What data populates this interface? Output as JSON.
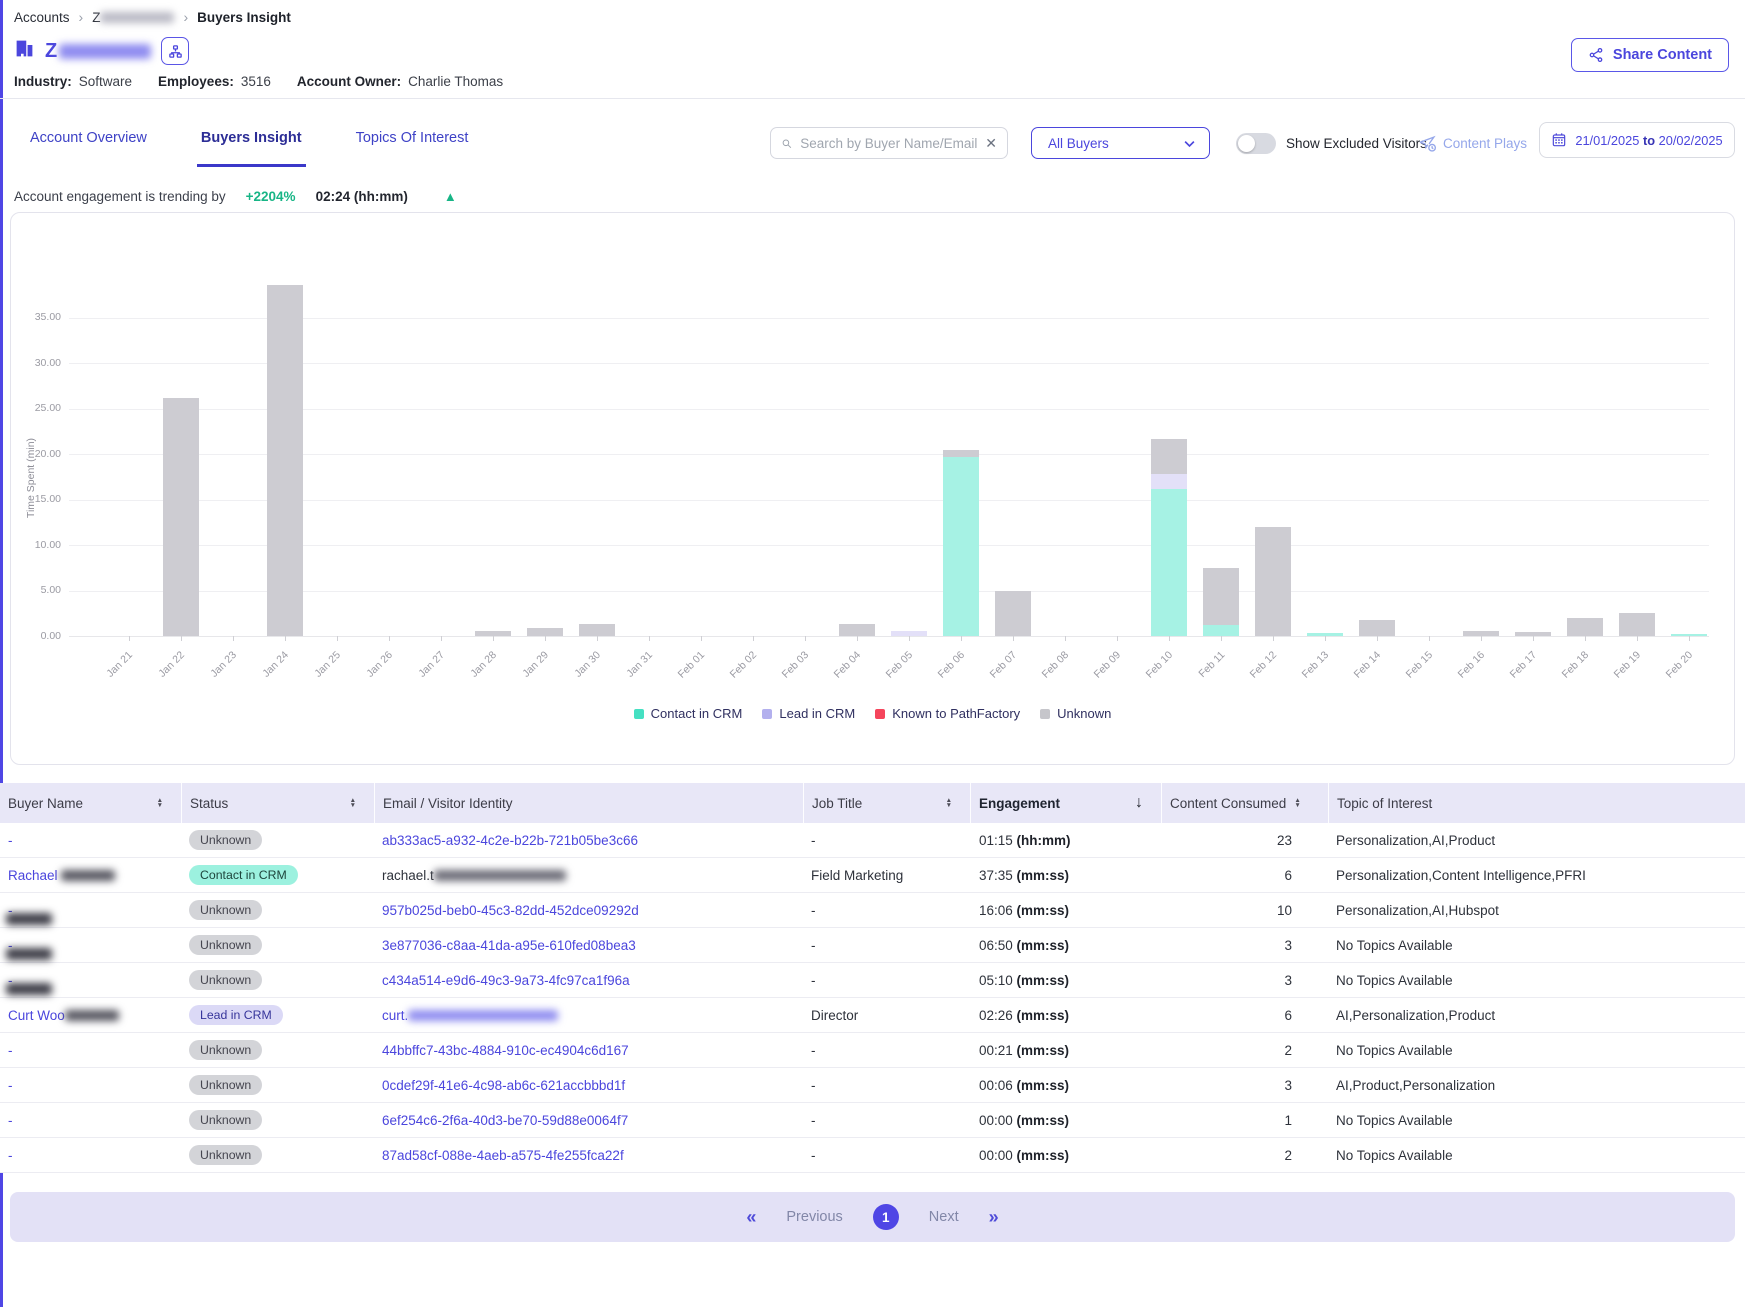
{
  "breadcrumb": {
    "root": "Accounts",
    "separator": "›",
    "account_initial": "Z",
    "current": "Buyers Insight"
  },
  "account_header": {
    "company_initial": "Z",
    "share_button_label": "Share Content",
    "meta": [
      {
        "label": "Industry:",
        "value": "Software"
      },
      {
        "label": "Employees:",
        "value": "3516"
      },
      {
        "label": "Account Owner:",
        "value": "Charlie Thomas"
      }
    ]
  },
  "tabs": [
    {
      "label": "Account Overview",
      "active": false
    },
    {
      "label": "Buyers Insight",
      "active": true
    },
    {
      "label": "Topics Of Interest",
      "active": false
    }
  ],
  "filters": {
    "search_placeholder": "Search by Buyer Name/Email",
    "clear_glyph": "✕",
    "buyers_dropdown_value": "All Buyers",
    "toggle_label": "Show Excluded Visitors",
    "toggle_on": false,
    "content_plays_label": "Content Plays",
    "date_range": {
      "start": "21/01/2025",
      "separator": "to",
      "end": "20/02/2025"
    }
  },
  "trending": {
    "prefix": "Account engagement is trending by",
    "percent": "+2204%",
    "time": "02:24 (hh:mm)",
    "direction_glyph": "▲"
  },
  "chart_data": {
    "type": "bar",
    "stacked": true,
    "ylabel": "Time Spent (min)",
    "ylim": [
      0,
      35
    ],
    "ytick_step": 5,
    "grid": true,
    "legend_position": "bottom-center",
    "categories": [
      "Jan 21",
      "Jan 22",
      "Jan 23",
      "Jan 24",
      "Jan 25",
      "Jan 26",
      "Jan 27",
      "Jan 28",
      "Jan 29",
      "Jan 30",
      "Jan 31",
      "Feb 01",
      "Feb 02",
      "Feb 03",
      "Feb 04",
      "Feb 05",
      "Feb 06",
      "Feb 07",
      "Feb 08",
      "Feb 09",
      "Feb 10",
      "Feb 11",
      "Feb 12",
      "Feb 13",
      "Feb 14",
      "Feb 15",
      "Feb 16",
      "Feb 17",
      "Feb 18",
      "Feb 19",
      "Feb 20"
    ],
    "series": [
      {
        "name": "Contact in CRM",
        "color": "#a6f2e4",
        "values": [
          0,
          0,
          0,
          0,
          0,
          0,
          0,
          0,
          0,
          0,
          0,
          0,
          0,
          0,
          0,
          0,
          19.7,
          0,
          0,
          0,
          16.1,
          1.2,
          0,
          0.3,
          0,
          0,
          0,
          0,
          0,
          0,
          0.2
        ]
      },
      {
        "name": "Lead in CRM",
        "color": "#e3e0f8",
        "values": [
          0,
          0,
          0,
          0,
          0,
          0,
          0,
          0,
          0,
          0,
          0,
          0,
          0,
          0,
          0,
          0.6,
          0,
          0,
          0,
          0,
          1.7,
          0,
          0,
          0,
          0,
          0,
          0,
          0,
          0,
          0,
          0
        ]
      },
      {
        "name": "Known to PathFactory",
        "color": "#f5455c",
        "values": [
          0,
          0,
          0,
          0,
          0,
          0,
          0,
          0,
          0,
          0,
          0,
          0,
          0,
          0,
          0,
          0,
          0,
          0,
          0,
          0,
          0,
          0,
          0,
          0,
          0,
          0,
          0,
          0,
          0,
          0,
          0
        ]
      },
      {
        "name": "Unknown",
        "color": "#cdccd2",
        "values": [
          0,
          26.2,
          0,
          38.6,
          0,
          0,
          0,
          0.6,
          0.9,
          1.3,
          0,
          0,
          0,
          0,
          1.3,
          0,
          0.7,
          5,
          0,
          0,
          3.8,
          6.3,
          12,
          0,
          1.8,
          0,
          0.6,
          0.4,
          2,
          2.5,
          0
        ]
      }
    ],
    "legend": [
      {
        "label": "Contact in CRM",
        "color": "#45e0c2"
      },
      {
        "label": "Lead in CRM",
        "color": "#b3b0ee"
      },
      {
        "label": "Known to PathFactory",
        "color": "#f5455c"
      },
      {
        "label": "Unknown",
        "color": "#c6c6cb"
      }
    ]
  },
  "table": {
    "columns": [
      {
        "label": "Buyer Name",
        "sort": "both"
      },
      {
        "label": "Status",
        "sort": "both"
      },
      {
        "label": "Email / Visitor Identity",
        "sort": "none"
      },
      {
        "label": "Job Title",
        "sort": "both"
      },
      {
        "label": "Engagement",
        "sort": "desc",
        "bold": true
      },
      {
        "label": "Content Consumed",
        "sort": "both",
        "tight": true
      },
      {
        "label": "Topic of Interest",
        "sort": "none"
      }
    ],
    "rows": [
      {
        "name": "-",
        "name_redact": "none",
        "status": "Unknown",
        "status_type": "unknown",
        "email": "ab333ac5-a932-4c2e-b22b-721b05be3c66",
        "email_link": true,
        "email_redact": false,
        "job_title": "-",
        "engagement_time": "01:15",
        "engagement_unit": "(hh:mm)",
        "content_consumed": "23",
        "topic": "Personalization,AI,Product"
      },
      {
        "name": "Rachael ",
        "name_redact": "inline",
        "status": "Contact in CRM",
        "status_type": "contact",
        "email": "rachael.t",
        "email_link": false,
        "email_redact": true,
        "job_title": "Field Marketing",
        "engagement_time": "37:35",
        "engagement_unit": "(mm:ss)",
        "content_consumed": "6",
        "topic": "Personalization,Content Intelligence,PFRI"
      },
      {
        "name": "-",
        "name_redact": "below",
        "status": "Unknown",
        "status_type": "unknown",
        "email": "957b025d-beb0-45c3-82dd-452dce09292d",
        "email_link": true,
        "email_redact": false,
        "job_title": "-",
        "engagement_time": "16:06",
        "engagement_unit": "(mm:ss)",
        "content_consumed": "10",
        "topic": "Personalization,AI,Hubspot"
      },
      {
        "name": "-",
        "name_redact": "below",
        "status": "Unknown",
        "status_type": "unknown",
        "email": "3e877036-c8aa-41da-a95e-610fed08bea3",
        "email_link": true,
        "email_redact": false,
        "job_title": "-",
        "engagement_time": "06:50",
        "engagement_unit": "(mm:ss)",
        "content_consumed": "3",
        "topic": "No Topics Available"
      },
      {
        "name": "-",
        "name_redact": "below",
        "status": "Unknown",
        "status_type": "unknown",
        "email": "c434a514-e9d6-49c3-9a73-4fc97ca1f96a",
        "email_link": true,
        "email_redact": false,
        "job_title": "-",
        "engagement_time": "05:10",
        "engagement_unit": "(mm:ss)",
        "content_consumed": "3",
        "topic": "No Topics Available"
      },
      {
        "name": "Curt Woo",
        "name_redact": "inline",
        "status": "Lead in CRM",
        "status_type": "lead",
        "email": "curt.",
        "email_link": true,
        "email_redact": true,
        "job_title": "Director",
        "engagement_time": "02:26",
        "engagement_unit": "(mm:ss)",
        "content_consumed": "6",
        "topic": "AI,Personalization,Product"
      },
      {
        "name": "-",
        "name_redact": "none",
        "status": "Unknown",
        "status_type": "unknown",
        "email": "44bbffc7-43bc-4884-910c-ec4904c6d167",
        "email_link": true,
        "email_redact": false,
        "job_title": "-",
        "engagement_time": "00:21",
        "engagement_unit": "(mm:ss)",
        "content_consumed": "2",
        "topic": "No Topics Available"
      },
      {
        "name": "-",
        "name_redact": "none",
        "status": "Unknown",
        "status_type": "unknown",
        "email": "0cdef29f-41e6-4c98-ab6c-621accbbbd1f",
        "email_link": true,
        "email_redact": false,
        "job_title": "-",
        "engagement_time": "00:06",
        "engagement_unit": "(mm:ss)",
        "content_consumed": "3",
        "topic": "AI,Product,Personalization"
      },
      {
        "name": "-",
        "name_redact": "none",
        "status": "Unknown",
        "status_type": "unknown",
        "email": "6ef254c6-2f6a-40d3-be70-59d88e0064f7",
        "email_link": true,
        "email_redact": false,
        "job_title": "-",
        "engagement_time": "00:00",
        "engagement_unit": "(mm:ss)",
        "content_consumed": "1",
        "topic": "No Topics Available"
      },
      {
        "name": "-",
        "name_redact": "none",
        "status": "Unknown",
        "status_type": "unknown",
        "email": "87ad58cf-088e-4aeb-a575-4fe255fca22f",
        "email_link": true,
        "email_redact": false,
        "job_title": "-",
        "engagement_time": "00:00",
        "engagement_unit": "(mm:ss)",
        "content_consumed": "2",
        "topic": "No Topics Available"
      }
    ]
  },
  "pagination": {
    "first": "«",
    "previous": "Previous",
    "page": "1",
    "next": "Next",
    "last": "»"
  },
  "colors": {
    "primary": "#4b46dd",
    "trend_green": "#18b586",
    "header_band": "#e8e7f7",
    "pagination_band": "#e3e1f6"
  }
}
